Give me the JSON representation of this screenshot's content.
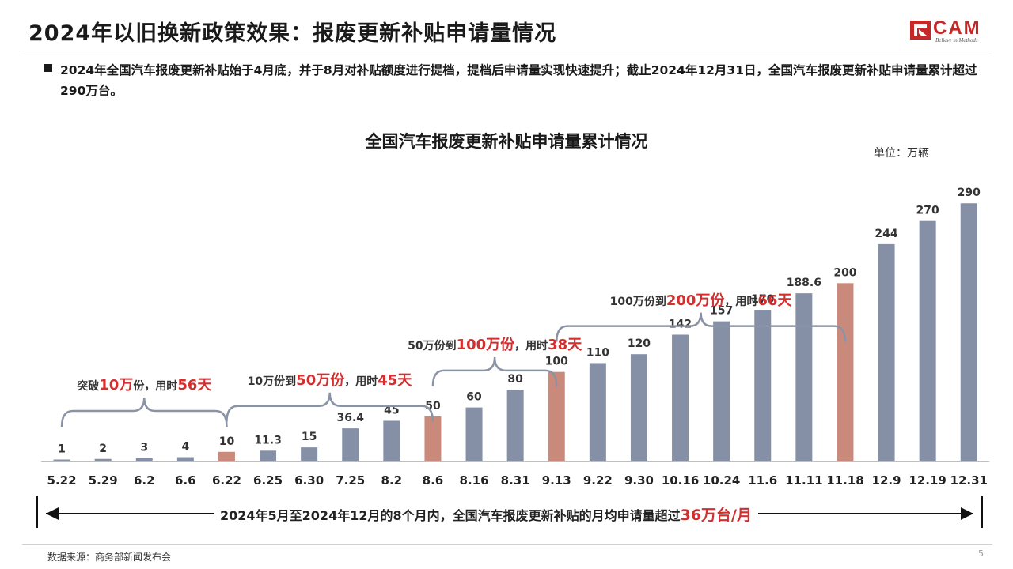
{
  "header": {
    "title": "2024年以旧换新政策效果：报废更新补贴申请量情况",
    "logo_text": "CAM",
    "logo_tagline": "Believe in Methods"
  },
  "bullet": {
    "text": "2024年全国汽车报废更新补贴始于4月底，并于8月对补贴额度进行提档，提档后申请量实现快速提升；截止2024年12月31日，全国汽车报废更新补贴申请量累计超过290万台。"
  },
  "chart_data": {
    "type": "bar",
    "title": "全国汽车报废更新补贴申请量累计情况",
    "unit": "单位：万辆",
    "categories": [
      "5.22",
      "5.29",
      "6.2",
      "6.6",
      "6.22",
      "6.25",
      "6.30",
      "7.25",
      "8.2",
      "8.6",
      "8.16",
      "8.31",
      "9.13",
      "9.22",
      "9.30",
      "10.16",
      "10.24",
      "11.6",
      "11.11",
      "11.18",
      "12.9",
      "12.19",
      "12.31"
    ],
    "values": [
      1,
      2,
      3,
      4,
      10,
      11.3,
      15,
      36.4,
      45,
      50,
      60,
      80,
      100,
      110,
      120,
      142,
      157,
      170,
      188.6,
      200,
      244,
      270,
      290
    ],
    "value_labels": [
      "1",
      "2",
      "3",
      "4",
      "10",
      "11.3",
      "15",
      "36.4",
      "45",
      "50",
      "60",
      "80",
      "100",
      "110",
      "120",
      "142",
      "157",
      "170",
      "188.6",
      "200",
      "244",
      "270",
      "290"
    ],
    "highlighted": [
      "6.22",
      "8.6",
      "9.13",
      "11.18"
    ],
    "ylim": [
      0,
      300
    ],
    "grid": false,
    "colors": {
      "bar": "#858fa6",
      "highlight": "#c98a7b",
      "brace": "#8a93a6",
      "accent": "#d32f2f"
    },
    "periods": [
      {
        "from": "5.22",
        "to": "6.22",
        "prefix": "突破",
        "highlight": "10万",
        "middle": "份，用时",
        "days": "56天"
      },
      {
        "from": "6.22",
        "to": "8.6",
        "prefix": "10万份到",
        "highlight": "50万份",
        "middle": "，用时",
        "days": "45天"
      },
      {
        "from": "8.6",
        "to": "9.13",
        "prefix": "50万份到",
        "highlight": "100万份",
        "middle": "，用时",
        "days": "38天"
      },
      {
        "from": "9.13",
        "to": "11.18",
        "prefix": "100万份到",
        "highlight": "200万份",
        "middle": "，用时",
        "days": "66天"
      }
    ]
  },
  "summary": {
    "prefix": "2024年5月至2024年12月的8个月内，全国汽车报废更新补贴的月均申请量超过",
    "highlight": "36万台/月"
  },
  "footer": {
    "source": "数据来源：商务部新闻发布会",
    "page_number": "5"
  }
}
